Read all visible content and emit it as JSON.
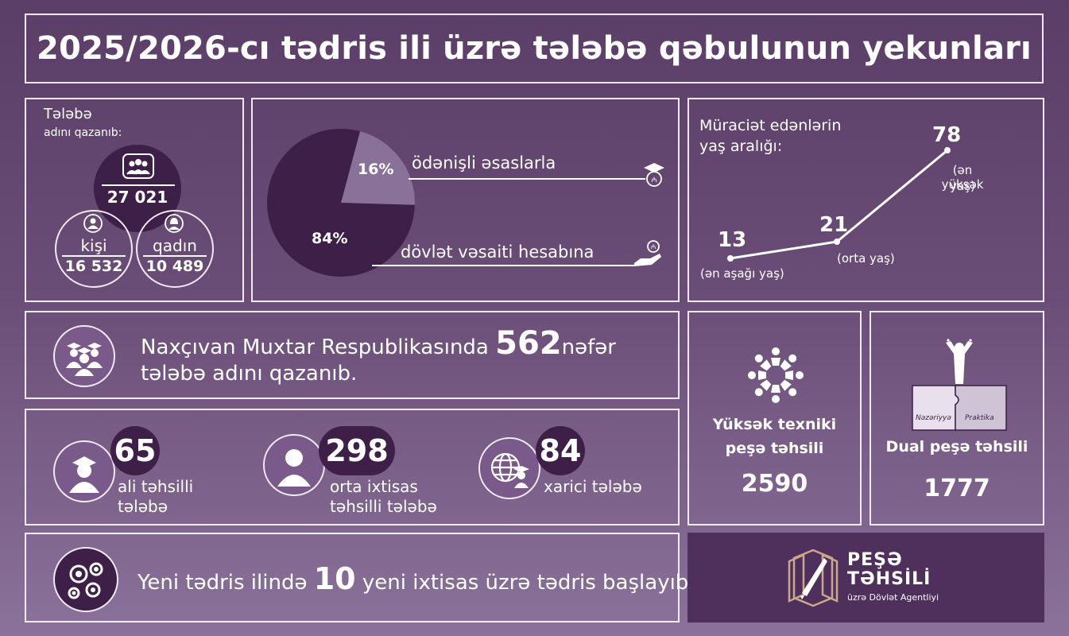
{
  "title": "2025/2026-cı tədris ili üzrə tələbə qəbulunun yekunları",
  "students": {
    "heading_line1": "Tələbə",
    "heading_line2": "adını qazanıb:",
    "total": "27 021",
    "male_label": "kişi",
    "male_value": "16 532",
    "female_label": "qadın",
    "female_value": "10 489"
  },
  "funding": {
    "paid_percent": "16%",
    "paid_label": "ödənişli əsaslarla",
    "state_percent": "84%",
    "state_label": "dövlət vəsaiti hesabına"
  },
  "chart_data": {
    "type": "line",
    "title": "Müraciət edənlərin yaş aralığı:",
    "title_line1": "Müraciət edənlərin",
    "title_line2": "yaş aralığı:",
    "points": [
      {
        "value": 13,
        "label": "(ən aşağı yaş)"
      },
      {
        "value": 21,
        "label": "(orta yaş)"
      },
      {
        "value": 78,
        "label_line1": "(ən yüksək",
        "label_line2": "yaş)"
      }
    ]
  },
  "nakhchivan": {
    "text_before": "Naxçıvan Muxtar Respublikasında ",
    "number": "562",
    "text_after": "nəfər",
    "line2": "tələbə adını qazanıb."
  },
  "stats": [
    {
      "value": "65",
      "line1": "ali təhsilli",
      "line2": "tələbə"
    },
    {
      "value": "298",
      "line1": "orta ixtisas",
      "line2": "təhsilli tələbə"
    },
    {
      "value": "84",
      "line1": "xarici tələbə"
    }
  ],
  "high_tech": {
    "line1": "Yüksək texniki",
    "line2": "peşə təhsili",
    "value": "2590"
  },
  "dual": {
    "label": "Dual peşə təhsili",
    "value": "1777",
    "puzzle_left": "Nəzəriyyə",
    "puzzle_right": "Praktika"
  },
  "new_specialties": {
    "before": "Yeni tədris ilində ",
    "number": "10",
    "after": " yeni ixtisas üzrə tədris başlayıb."
  },
  "logo": {
    "line1": "PEŞƏ",
    "line2": "TƏHSİLİ",
    "line3": "üzrə Dövlət Agentliyi"
  },
  "colors": {
    "background": "#5b3e67",
    "dark": "#3d1f48",
    "light_slice": "#8a719a",
    "border": "#f1eaf4"
  }
}
